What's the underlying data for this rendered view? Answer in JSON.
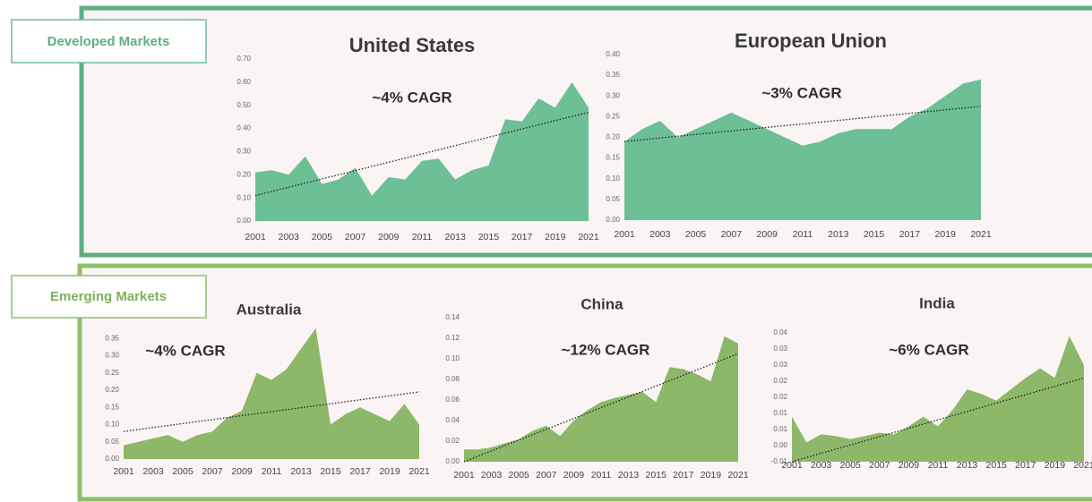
{
  "sections": [
    {
      "label": "Developed Markets"
    },
    {
      "label": "Emerging Markets"
    }
  ],
  "chart_data": [
    {
      "type": "area",
      "title": "United States",
      "annotation": "~4% CAGR",
      "color": "#6dbf96",
      "x": [
        2001,
        2002,
        2003,
        2004,
        2005,
        2006,
        2007,
        2008,
        2009,
        2010,
        2011,
        2012,
        2013,
        2014,
        2015,
        2016,
        2017,
        2018,
        2019,
        2020,
        2021
      ],
      "values": [
        0.21,
        0.22,
        0.2,
        0.28,
        0.16,
        0.18,
        0.23,
        0.11,
        0.19,
        0.18,
        0.26,
        0.27,
        0.18,
        0.22,
        0.24,
        0.44,
        0.43,
        0.53,
        0.49,
        0.6,
        0.49
      ],
      "trend": [
        0.11,
        0.47
      ],
      "xlim": [
        2001,
        2021
      ],
      "xticks": [
        2001,
        2003,
        2005,
        2007,
        2009,
        2011,
        2013,
        2015,
        2017,
        2019,
        2021
      ],
      "ylim": [
        0,
        0.7
      ],
      "yticks": [
        {
          "value": 0,
          "label": "0.00"
        },
        {
          "value": 0.1,
          "label": "0.10"
        },
        {
          "value": 0.2,
          "label": "0.20"
        },
        {
          "value": 0.3,
          "label": "0.30"
        },
        {
          "value": 0.4,
          "label": "0.40"
        },
        {
          "value": 0.5,
          "label": "0.50"
        },
        {
          "value": 0.6,
          "label": "0.60"
        },
        {
          "value": 0.7,
          "label": "0.70"
        }
      ]
    },
    {
      "type": "area",
      "title": "European Union",
      "annotation": "~3% CAGR",
      "color": "#6dbf96",
      "x": [
        2001,
        2002,
        2003,
        2004,
        2005,
        2006,
        2007,
        2008,
        2009,
        2010,
        2011,
        2012,
        2013,
        2014,
        2015,
        2016,
        2017,
        2018,
        2019,
        2020,
        2021
      ],
      "values": [
        0.19,
        0.22,
        0.24,
        0.2,
        0.22,
        0.24,
        0.26,
        0.24,
        0.22,
        0.2,
        0.18,
        0.19,
        0.21,
        0.22,
        0.22,
        0.22,
        0.25,
        0.27,
        0.3,
        0.33,
        0.34
      ],
      "trend": [
        0.19,
        0.275
      ],
      "xlim": [
        2001,
        2021
      ],
      "xticks": [
        2001,
        2003,
        2005,
        2007,
        2009,
        2011,
        2013,
        2015,
        2017,
        2019,
        2021
      ],
      "ylim": [
        0,
        0.4
      ],
      "yticks": [
        {
          "value": 0,
          "label": "0.00"
        },
        {
          "value": 0.05,
          "label": "0.05"
        },
        {
          "value": 0.1,
          "label": "0.10"
        },
        {
          "value": 0.15,
          "label": "0.15"
        },
        {
          "value": 0.2,
          "label": "0.20"
        },
        {
          "value": 0.25,
          "label": "0.25"
        },
        {
          "value": 0.3,
          "label": "0.30"
        },
        {
          "value": 0.35,
          "label": "0.35"
        },
        {
          "value": 0.4,
          "label": "0.40"
        }
      ]
    },
    {
      "type": "area",
      "title": "Australia",
      "annotation": "~4% CAGR",
      "color": "#8db86a",
      "x": [
        2001,
        2002,
        2003,
        2004,
        2005,
        2006,
        2007,
        2008,
        2009,
        2010,
        2011,
        2012,
        2013,
        2014,
        2015,
        2016,
        2017,
        2018,
        2019,
        2020,
        2021
      ],
      "values": [
        0.04,
        0.05,
        0.06,
        0.07,
        0.05,
        0.07,
        0.08,
        0.12,
        0.14,
        0.25,
        0.23,
        0.26,
        0.32,
        0.38,
        0.1,
        0.13,
        0.15,
        0.13,
        0.11,
        0.16,
        0.1
      ],
      "trend": [
        0.08,
        0.195
      ],
      "xlim": [
        2001,
        2021
      ],
      "xticks": [
        2001,
        2003,
        2005,
        2007,
        2009,
        2011,
        2013,
        2015,
        2017,
        2019,
        2021
      ],
      "ylim": [
        0,
        0.4
      ],
      "yticks": [
        {
          "value": 0,
          "label": "0.00"
        },
        {
          "value": 0.05,
          "label": "0.05"
        },
        {
          "value": 0.1,
          "label": "0.10"
        },
        {
          "value": 0.15,
          "label": "0.15"
        },
        {
          "value": 0.2,
          "label": "0.20"
        },
        {
          "value": 0.25,
          "label": "0.25"
        },
        {
          "value": 0.3,
          "label": "0.30"
        },
        {
          "value": 0.35,
          "label": "0.35"
        }
      ]
    },
    {
      "type": "area",
      "title": "China",
      "annotation": "~12% CAGR",
      "color": "#8db86a",
      "x": [
        2001,
        2002,
        2003,
        2004,
        2005,
        2006,
        2007,
        2008,
        2009,
        2010,
        2011,
        2012,
        2013,
        2014,
        2015,
        2016,
        2017,
        2018,
        2019,
        2020,
        2021
      ],
      "values": [
        0.012,
        0.012,
        0.014,
        0.018,
        0.022,
        0.03,
        0.035,
        0.025,
        0.04,
        0.05,
        0.058,
        0.062,
        0.065,
        0.068,
        0.058,
        0.092,
        0.09,
        0.085,
        0.078,
        0.122,
        0.115
      ],
      "trend": [
        0,
        0.105
      ],
      "xlim": [
        2001,
        2021
      ],
      "xticks": [
        2001,
        2003,
        2005,
        2007,
        2009,
        2011,
        2013,
        2015,
        2017,
        2019,
        2021
      ],
      "ylim": [
        0,
        0.14
      ],
      "yticks": [
        {
          "value": 0,
          "label": "0.00"
        },
        {
          "value": 0.02,
          "label": "0.02"
        },
        {
          "value": 0.04,
          "label": "0.04"
        },
        {
          "value": 0.06,
          "label": "0.06"
        },
        {
          "value": 0.08,
          "label": "0.08"
        },
        {
          "value": 0.1,
          "label": "0.10"
        },
        {
          "value": 0.12,
          "label": "0.12"
        },
        {
          "value": 0.14,
          "label": "0.14"
        }
      ]
    },
    {
      "type": "area",
      "title": "India",
      "annotation": "~6% CAGR",
      "color": "#8db86a",
      "x": [
        2001,
        2002,
        2003,
        2004,
        2005,
        2006,
        2007,
        2008,
        2009,
        2010,
        2011,
        2012,
        2013,
        2014,
        2015,
        2016,
        2017,
        2018,
        2019,
        2020,
        2021
      ],
      "values": [
        0.009,
        0.001,
        0.0035,
        0.003,
        0.002,
        0.003,
        0.004,
        0.0035,
        0.006,
        0.009,
        0.006,
        0.011,
        0.0175,
        0.016,
        0.014,
        0.0175,
        0.021,
        0.024,
        0.021,
        0.034,
        0.025
      ],
      "trend": [
        -0.005,
        0.021
      ],
      "xlim": [
        2001,
        2021
      ],
      "xticks": [
        2001,
        2003,
        2005,
        2007,
        2009,
        2011,
        2013,
        2015,
        2017,
        2019,
        2021
      ],
      "ylim": [
        -0.005,
        0.035
      ],
      "yticks": [
        {
          "value": -0.005,
          "label": "-0.01"
        },
        {
          "value": 0,
          "label": "0.00"
        },
        {
          "value": 0.005,
          "label": "0.01"
        },
        {
          "value": 0.01,
          "label": "0.01"
        },
        {
          "value": 0.015,
          "label": "0.02"
        },
        {
          "value": 0.02,
          "label": "0.02"
        },
        {
          "value": 0.025,
          "label": "0.03"
        },
        {
          "value": 0.03,
          "label": "0.03"
        },
        {
          "value": 0.035,
          "label": "0.04"
        }
      ]
    }
  ]
}
